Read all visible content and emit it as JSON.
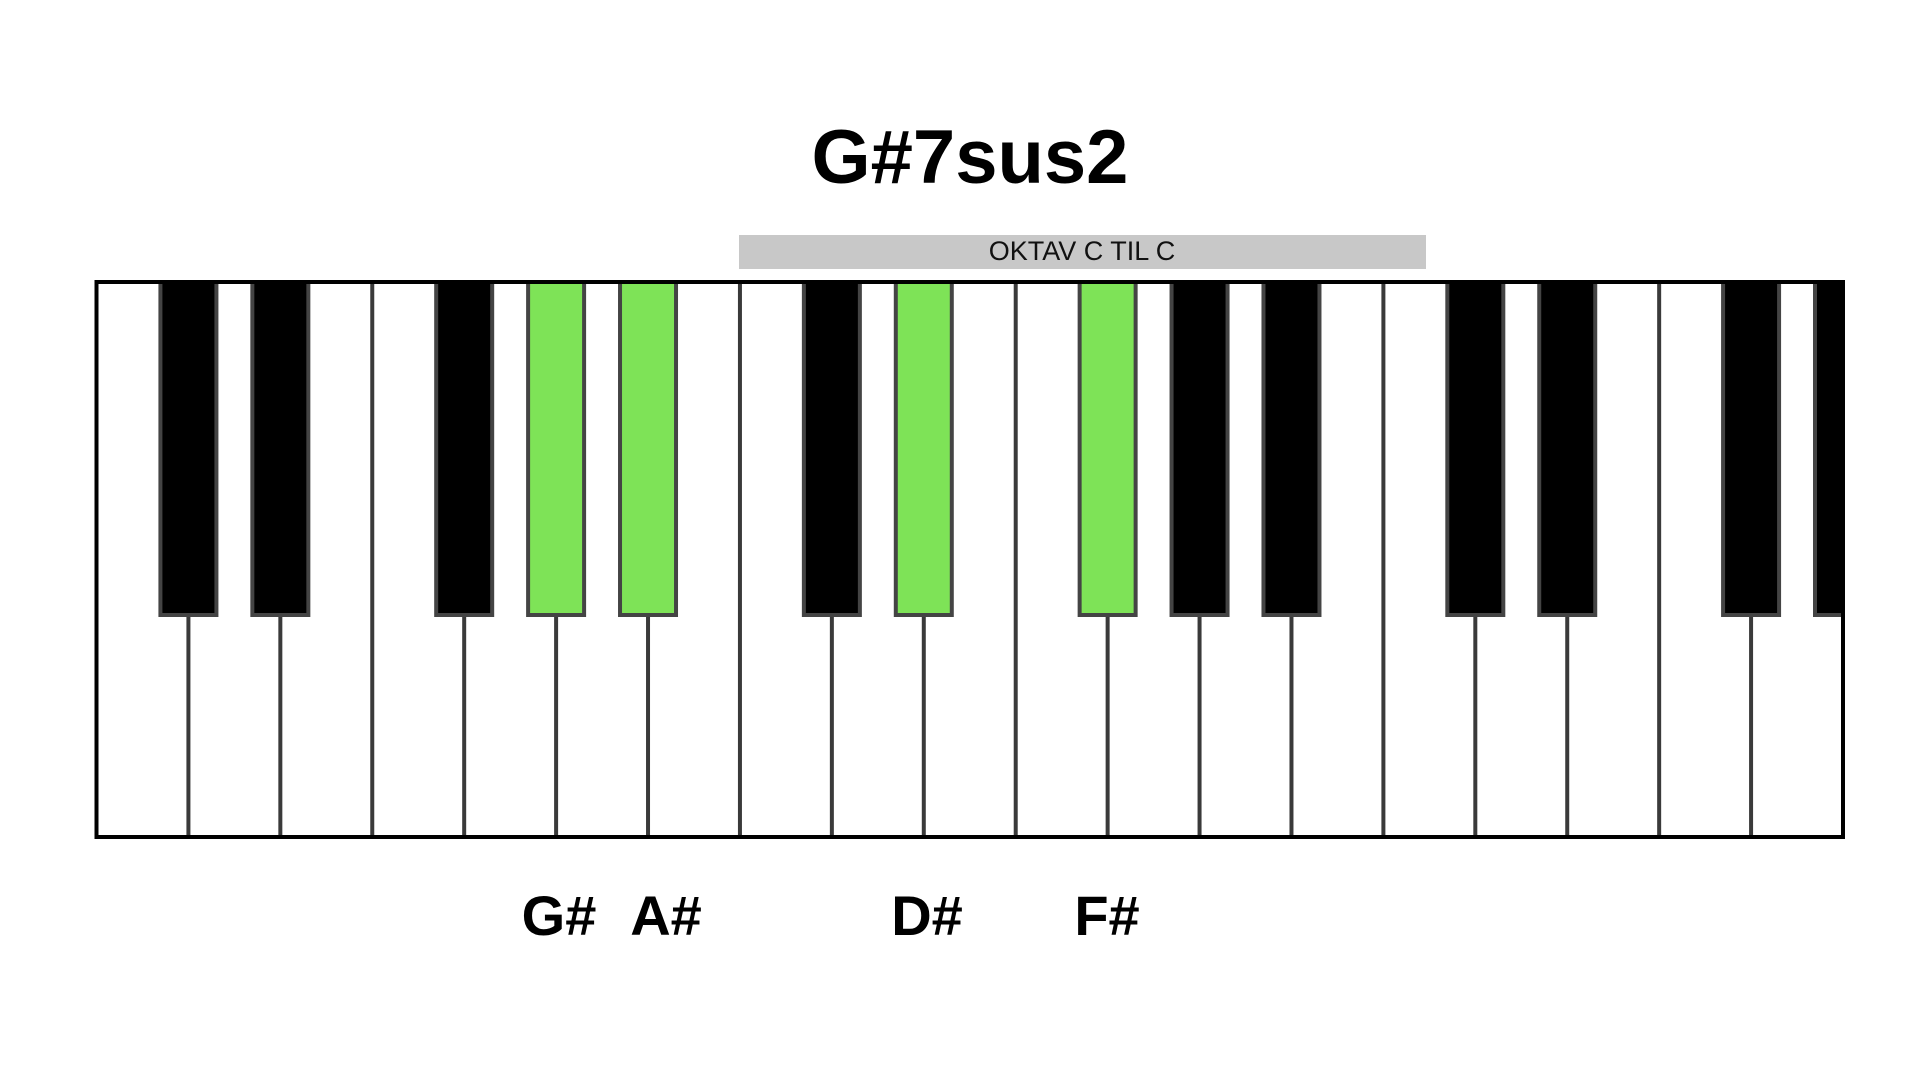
{
  "title": "G#7sus2",
  "banner": "OKTAV C TIL C",
  "notes": [
    "G#",
    "A#",
    "D#",
    "F#"
  ]
}
